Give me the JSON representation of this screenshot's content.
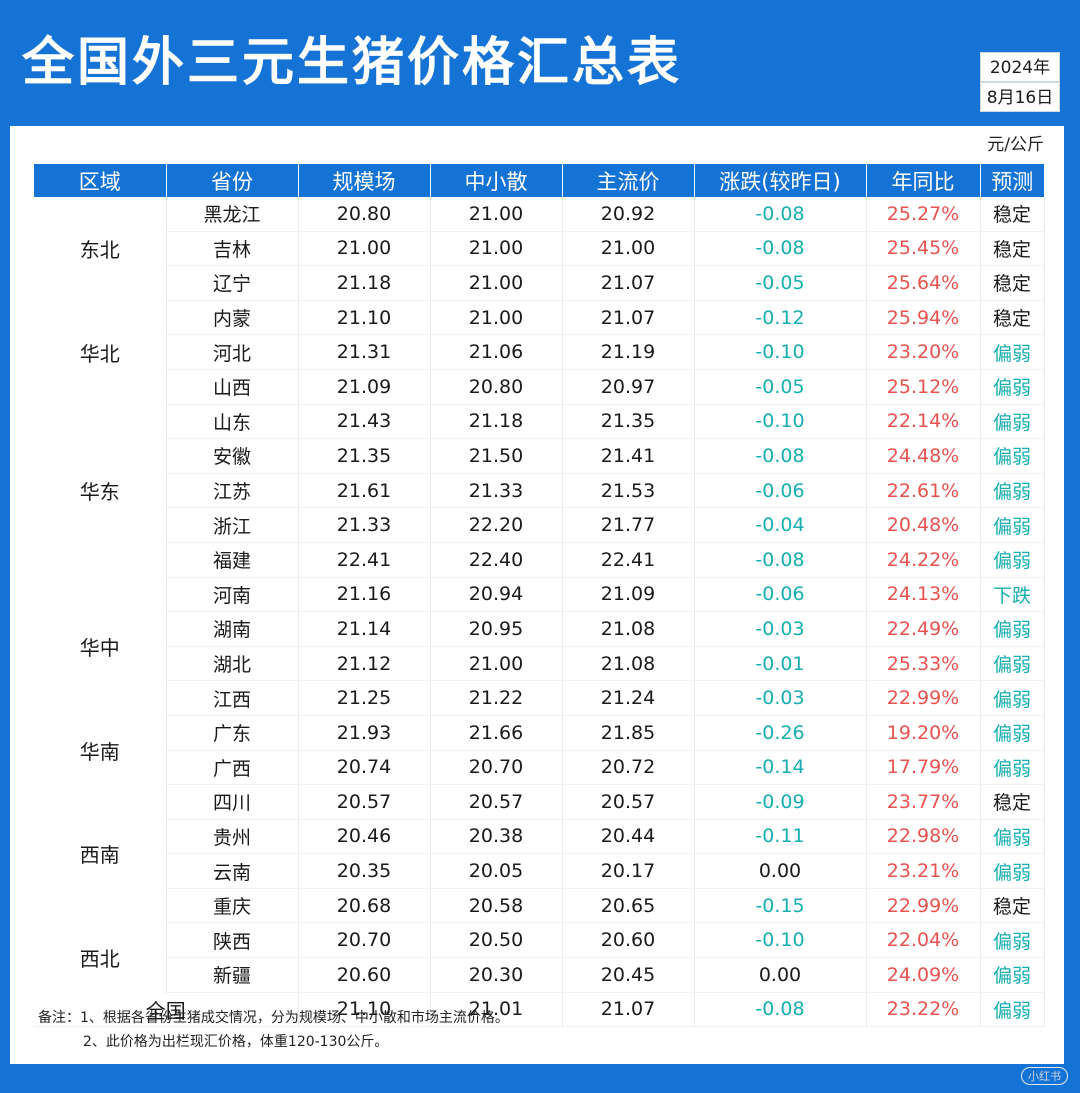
{
  "header": {
    "title": "全国外三元生猪价格汇总表",
    "year": "2024年",
    "date": "8月16日"
  },
  "unit": "元/公斤",
  "table": {
    "columns": [
      "区域",
      "省份",
      "规模场",
      "中小散",
      "主流价",
      "涨跌(较昨日)",
      "年同比",
      "预测"
    ],
    "regions": [
      {
        "name": "东北",
        "rows": [
          {
            "province": "黑龙江",
            "large": "20.80",
            "small": "21.00",
            "main": "20.92",
            "change": "-0.08",
            "yoy": "25.27%",
            "forecast": "稳定"
          },
          {
            "province": "吉林",
            "large": "21.00",
            "small": "21.00",
            "main": "21.00",
            "change": "-0.08",
            "yoy": "25.45%",
            "forecast": "稳定"
          },
          {
            "province": "辽宁",
            "large": "21.18",
            "small": "21.00",
            "main": "21.07",
            "change": "-0.05",
            "yoy": "25.64%",
            "forecast": "稳定"
          }
        ]
      },
      {
        "name": "华北",
        "rows": [
          {
            "province": "内蒙",
            "large": "21.10",
            "small": "21.00",
            "main": "21.07",
            "change": "-0.12",
            "yoy": "25.94%",
            "forecast": "稳定"
          },
          {
            "province": "河北",
            "large": "21.31",
            "small": "21.06",
            "main": "21.19",
            "change": "-0.10",
            "yoy": "23.20%",
            "forecast": "偏弱"
          },
          {
            "province": "山西",
            "large": "21.09",
            "small": "20.80",
            "main": "20.97",
            "change": "-0.05",
            "yoy": "25.12%",
            "forecast": "偏弱"
          }
        ]
      },
      {
        "name": "华东",
        "rows": [
          {
            "province": "山东",
            "large": "21.43",
            "small": "21.18",
            "main": "21.35",
            "change": "-0.10",
            "yoy": "22.14%",
            "forecast": "偏弱"
          },
          {
            "province": "安徽",
            "large": "21.35",
            "small": "21.50",
            "main": "21.41",
            "change": "-0.08",
            "yoy": "24.48%",
            "forecast": "偏弱"
          },
          {
            "province": "江苏",
            "large": "21.61",
            "small": "21.33",
            "main": "21.53",
            "change": "-0.06",
            "yoy": "22.61%",
            "forecast": "偏弱"
          },
          {
            "province": "浙江",
            "large": "21.33",
            "small": "22.20",
            "main": "21.77",
            "change": "-0.04",
            "yoy": "20.48%",
            "forecast": "偏弱"
          },
          {
            "province": "福建",
            "large": "22.41",
            "small": "22.40",
            "main": "22.41",
            "change": "-0.08",
            "yoy": "24.22%",
            "forecast": "偏弱"
          }
        ]
      },
      {
        "name": "华中",
        "rows": [
          {
            "province": "河南",
            "large": "21.16",
            "small": "20.94",
            "main": "21.09",
            "change": "-0.06",
            "yoy": "24.13%",
            "forecast": "下跌"
          },
          {
            "province": "湖南",
            "large": "21.14",
            "small": "20.95",
            "main": "21.08",
            "change": "-0.03",
            "yoy": "22.49%",
            "forecast": "偏弱"
          },
          {
            "province": "湖北",
            "large": "21.12",
            "small": "21.00",
            "main": "21.08",
            "change": "-0.01",
            "yoy": "25.33%",
            "forecast": "偏弱"
          },
          {
            "province": "江西",
            "large": "21.25",
            "small": "21.22",
            "main": "21.24",
            "change": "-0.03",
            "yoy": "22.99%",
            "forecast": "偏弱"
          }
        ]
      },
      {
        "name": "华南",
        "rows": [
          {
            "province": "广东",
            "large": "21.93",
            "small": "21.66",
            "main": "21.85",
            "change": "-0.26",
            "yoy": "19.20%",
            "forecast": "偏弱"
          },
          {
            "province": "广西",
            "large": "20.74",
            "small": "20.70",
            "main": "20.72",
            "change": "-0.14",
            "yoy": "17.79%",
            "forecast": "偏弱"
          }
        ]
      },
      {
        "name": "西南",
        "rows": [
          {
            "province": "四川",
            "large": "20.57",
            "small": "20.57",
            "main": "20.57",
            "change": "-0.09",
            "yoy": "23.77%",
            "forecast": "稳定"
          },
          {
            "province": "贵州",
            "large": "20.46",
            "small": "20.38",
            "main": "20.44",
            "change": "-0.11",
            "yoy": "22.98%",
            "forecast": "偏弱"
          },
          {
            "province": "云南",
            "large": "20.35",
            "small": "20.05",
            "main": "20.17",
            "change": "0.00",
            "yoy": "23.21%",
            "forecast": "偏弱"
          },
          {
            "province": "重庆",
            "large": "20.68",
            "small": "20.58",
            "main": "20.65",
            "change": "-0.15",
            "yoy": "22.99%",
            "forecast": "稳定"
          }
        ]
      },
      {
        "name": "西北",
        "rows": [
          {
            "province": "陕西",
            "large": "20.70",
            "small": "20.50",
            "main": "20.60",
            "change": "-0.10",
            "yoy": "22.04%",
            "forecast": "偏弱"
          },
          {
            "province": "新疆",
            "large": "20.60",
            "small": "20.30",
            "main": "20.45",
            "change": "0.00",
            "yoy": "24.09%",
            "forecast": "偏弱"
          }
        ]
      }
    ],
    "total": {
      "label": "全国",
      "large": "21.10",
      "small": "21.01",
      "main": "21.07",
      "change": "-0.08",
      "yoy": "23.22%",
      "forecast": "偏弱"
    }
  },
  "notes": [
    "备注：1、根据各省份生猪成交情况，分为规模场、中小散和市场主流价格。",
    "2、此价格为出栏现汇价格，体重120-130公斤。"
  ],
  "watermark": "小红书",
  "colors": {
    "brand_blue": "#1673d6",
    "down_teal": "#17aeb0",
    "up_red": "#e8524f"
  }
}
